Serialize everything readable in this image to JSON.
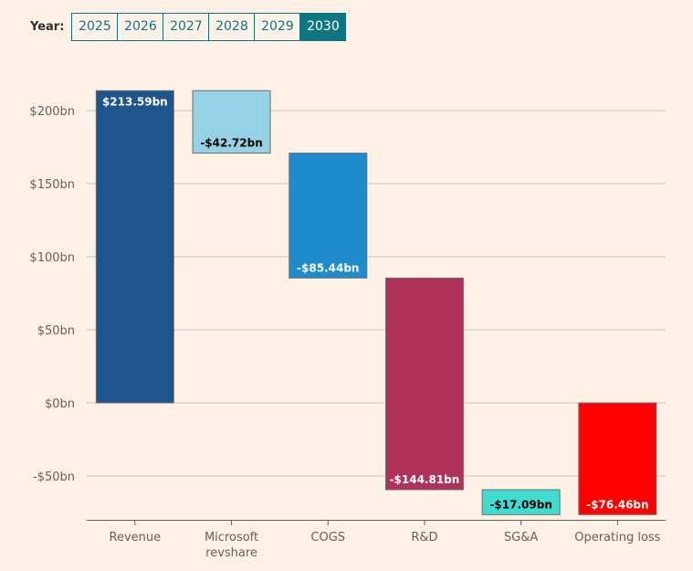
{
  "year_selector": {
    "label": "Year:",
    "years": [
      "2025",
      "2026",
      "2027",
      "2028",
      "2029",
      "2030"
    ],
    "selected": "2030"
  },
  "chart_data": {
    "type": "waterfall",
    "title": "",
    "xlabel": "",
    "ylabel": "",
    "ylim": [
      -80,
      220
    ],
    "yticks": [
      -50,
      0,
      50,
      100,
      150,
      200
    ],
    "ytick_labels": [
      "-$50bn",
      "$0bn",
      "$50bn",
      "$100bn",
      "$150bn",
      "$200bn"
    ],
    "grid": true,
    "categories": [
      "Revenue",
      "Microsoft revshare",
      "COGS",
      "R&D",
      "SG&A",
      "Operating loss"
    ],
    "category_lines": [
      [
        "Revenue"
      ],
      [
        "Microsoft",
        "revshare"
      ],
      [
        "COGS"
      ],
      [
        "R&D"
      ],
      [
        "SG&A"
      ],
      [
        "Operating loss"
      ]
    ],
    "values": [
      213.59,
      -42.72,
      -85.44,
      -144.81,
      -17.09,
      -76.46
    ],
    "bar_kind": [
      "total",
      "delta",
      "delta",
      "delta",
      "delta",
      "total"
    ],
    "data_labels": [
      "$213.59bn",
      "-$42.72bn",
      "-$85.44bn",
      "-$144.81bn",
      "-$17.09bn",
      "-$76.46bn"
    ],
    "colors": [
      "#1e558c",
      "#96d2e6",
      "#1e8bcd",
      "#b0325a",
      "#40dccf",
      "#ff0000"
    ],
    "label_colors": [
      "#ffffff",
      "#000000",
      "#ffffff",
      "#ffffff",
      "#000000",
      "#ffffff"
    ]
  }
}
